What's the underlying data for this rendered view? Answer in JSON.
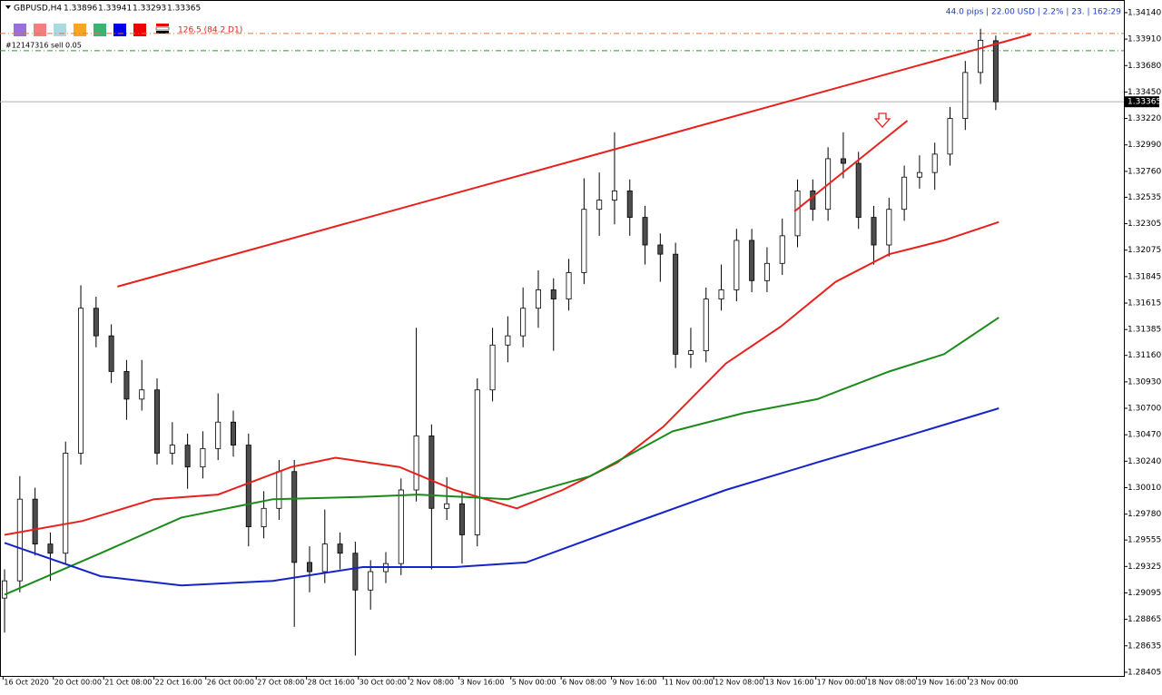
{
  "header": {
    "symbol": "GBPUSD,H4",
    "info": "44.0 pips | 22.00 USD | 2.2% | 23. | 162:29",
    "order": "#12147316 sell 0.05",
    "level_label": "126.5 (84.2 D1)",
    "swatches": [
      "#9b6fd8",
      "#f08080",
      "#aadbe0",
      "#f5a623",
      "#3cb371",
      "#0000ee",
      "#ee0000"
    ]
  },
  "chart_data": {
    "type": "candlestick",
    "open": [
      1.2905,
      1.292,
      1.2991,
      1.2952,
      1.2944,
      1.3031,
      1.3157,
      1.3133,
      1.3102,
      1.3078,
      1.3086,
      1.3031,
      1.3038,
      1.3019,
      1.3035,
      1.3058,
      1.3038,
      1.2967,
      1.2983,
      1.3015,
      1.2936,
      1.2928,
      1.2952,
      1.2944,
      1.2912,
      1.2928,
      1.2935,
      1.2999,
      1.3046,
      1.2983,
      1.2987,
      1.296,
      1.3086,
      1.3125,
      1.3133,
      1.3157,
      1.3173,
      1.3165,
      1.3188,
      1.3243,
      1.3251,
      1.3259,
      1.3236,
      1.3212,
      1.3204,
      1.3117,
      1.312,
      1.3165,
      1.3173,
      1.3216,
      1.3181,
      1.3196,
      1.322,
      1.3259,
      1.3243,
      1.3287,
      1.3283,
      1.3236,
      1.3212,
      1.3243,
      1.3271,
      1.3275,
      1.3291,
      1.3322,
      1.3362,
      1.33896
    ],
    "high": [
      1.293,
      1.3011,
      1.3001,
      1.2962,
      1.3041,
      1.3177,
      1.3167,
      1.3143,
      1.3112,
      1.3112,
      1.3096,
      1.3058,
      1.3048,
      1.305,
      1.3083,
      1.3068,
      1.3048,
      1.2998,
      1.3025,
      1.3025,
      1.295,
      1.2982,
      1.2962,
      1.2954,
      1.2938,
      1.2945,
      1.3009,
      1.314,
      1.3056,
      1.301,
      1.2997,
      1.3096,
      1.314,
      1.315,
      1.3175,
      1.319,
      1.3183,
      1.32,
      1.327,
      1.3275,
      1.331,
      1.3269,
      1.3246,
      1.3222,
      1.3214,
      1.314,
      1.3175,
      1.3195,
      1.3226,
      1.3226,
      1.321,
      1.3235,
      1.3269,
      1.3269,
      1.3297,
      1.331,
      1.3293,
      1.3246,
      1.3253,
      1.3281,
      1.329,
      1.3301,
      1.3332,
      1.3372,
      1.34,
      1.33941
    ],
    "low": [
      1.2875,
      1.291,
      1.2942,
      1.292,
      1.2934,
      1.3021,
      1.3123,
      1.3092,
      1.306,
      1.3068,
      1.3021,
      1.3021,
      1.3,
      1.3009,
      1.3025,
      1.3028,
      1.295,
      1.2957,
      1.2973,
      1.288,
      1.291,
      1.2918,
      1.293,
      1.2855,
      1.2895,
      1.2918,
      1.2925,
      1.2989,
      1.293,
      1.2973,
      1.2935,
      1.295,
      1.3076,
      1.311,
      1.3123,
      1.314,
      1.312,
      1.3155,
      1.3178,
      1.322,
      1.323,
      1.322,
      1.3195,
      1.318,
      1.3105,
      1.3105,
      1.311,
      1.3155,
      1.3163,
      1.3171,
      1.3171,
      1.3186,
      1.321,
      1.3233,
      1.3233,
      1.327,
      1.3226,
      1.3195,
      1.3202,
      1.3233,
      1.3261,
      1.326,
      1.3281,
      1.3312,
      1.3352,
      1.33293
    ],
    "close": [
      1.292,
      1.2991,
      1.2952,
      1.2944,
      1.3031,
      1.3157,
      1.3133,
      1.3102,
      1.3078,
      1.3086,
      1.3031,
      1.3038,
      1.3019,
      1.3035,
      1.3058,
      1.3038,
      1.2967,
      1.2983,
      1.3015,
      1.2936,
      1.2928,
      1.2952,
      1.2944,
      1.2912,
      1.2928,
      1.2935,
      1.2999,
      1.3046,
      1.2983,
      1.2987,
      1.296,
      1.3086,
      1.3125,
      1.3133,
      1.3157,
      1.3173,
      1.3165,
      1.3188,
      1.3243,
      1.3251,
      1.3259,
      1.3236,
      1.3212,
      1.3204,
      1.3117,
      1.312,
      1.3165,
      1.3173,
      1.3216,
      1.3181,
      1.3196,
      1.322,
      1.3259,
      1.3243,
      1.3287,
      1.3283,
      1.3236,
      1.3212,
      1.3243,
      1.3271,
      1.3275,
      1.3291,
      1.3322,
      1.3362,
      1.339,
      1.33365
    ],
    "up_color": "#ffffff",
    "down_color": "#4d4d4d",
    "xlim": [
      -0.3,
      73.4
    ],
    "xticks": [
      {
        "value": -0.1,
        "label": "16 Oct 2020"
      },
      {
        "value": 3.2,
        "label": "20 Oct 00:00"
      },
      {
        "value": 6.5,
        "label": "21 Oct 08:00"
      },
      {
        "value": 9.8,
        "label": "22 Oct 16:00"
      },
      {
        "value": 13.2,
        "label": "26 Oct 00:00"
      },
      {
        "value": 16.5,
        "label": "27 Oct 08:00"
      },
      {
        "value": 19.8,
        "label": "28 Oct 16:00"
      },
      {
        "value": 23.2,
        "label": "30 Oct 00:00"
      },
      {
        "value": 26.5,
        "label": "2 Nov 08:00"
      },
      {
        "value": 29.8,
        "label": "3 Nov 16:00"
      },
      {
        "value": 33.2,
        "label": "5 Nov 00:00"
      },
      {
        "value": 36.5,
        "label": "6 Nov 08:00"
      },
      {
        "value": 39.8,
        "label": "9 Nov 16:00"
      },
      {
        "value": 43.2,
        "label": "11 Nov 00:00"
      },
      {
        "value": 46.5,
        "label": "12 Nov 08:00"
      },
      {
        "value": 49.8,
        "label": "13 Nov 16:00"
      },
      {
        "value": 53.2,
        "label": "17 Nov 00:00"
      },
      {
        "value": 56.5,
        "label": "18 Nov 08:00"
      },
      {
        "value": 59.8,
        "label": "19 Nov 16:00"
      },
      {
        "value": 63.2,
        "label": "23 Nov 00:00"
      }
    ],
    "ylim": [
      1.28373,
      1.3425
    ],
    "yticks": [
      {
        "value": 1.3414,
        "label": "1.34140"
      },
      {
        "value": 1.3391,
        "label": "1.33910"
      },
      {
        "value": 1.3368,
        "label": "1.33680"
      },
      {
        "value": 1.3345,
        "label": "1.33450"
      },
      {
        "value": 1.3322,
        "label": "1.33220"
      },
      {
        "value": 1.3299,
        "label": "1.32990"
      },
      {
        "value": 1.3276,
        "label": "1.32760"
      },
      1.32535,
      1.32305,
      1.32075,
      1.31845,
      1.31615,
      1.31385,
      {
        "value": 1.3116,
        "label": "1.31160"
      },
      {
        "value": 1.3093,
        "label": "1.30930"
      },
      {
        "value": 1.307,
        "label": "1.30700"
      },
      {
        "value": 1.3047,
        "label": "1.30470"
      },
      {
        "value": 1.3024,
        "label": "1.30240"
      },
      {
        "value": 1.3001,
        "label": "1.30010"
      },
      {
        "value": 1.2978,
        "label": "1.29780"
      },
      1.29555,
      1.29325,
      1.29095,
      1.28865,
      1.28635,
      1.28405
    ],
    "lines": [
      {
        "color": "#e8201c",
        "x": [
          0,
          5.1,
          9.8,
          14,
          18.8,
          21.7,
          25.9,
          29.5,
          33.6,
          36.6,
          40.2,
          43.2,
          47.3,
          50.9,
          54.5,
          58,
          61.6,
          65.2
        ],
        "values": [
          1.296,
          1.2972,
          1.2991,
          1.2995,
          1.3019,
          1.3027,
          1.3019,
          1.2999,
          1.2983,
          1.2999,
          1.3023,
          1.3054,
          1.3109,
          1.3141,
          1.318,
          1.3204,
          1.3216,
          1.3232
        ]
      },
      {
        "color": "#1a8a1a",
        "x": [
          0,
          6.3,
          11.6,
          17.6,
          23.5,
          27.1,
          33,
          38.4,
          43.8,
          48.5,
          53.3,
          58,
          61.6,
          65.2
        ],
        "values": [
          1.2908,
          1.2944,
          1.2975,
          1.2991,
          1.2993,
          1.2995,
          1.2991,
          1.3011,
          1.305,
          1.3066,
          1.3078,
          1.3102,
          1.3117,
          1.3149
        ]
      },
      {
        "color": "#1424c8",
        "x": [
          0,
          6.3,
          11.6,
          17.6,
          23.5,
          29.5,
          34.2,
          41.4,
          47.3,
          53.3,
          59.2,
          65.2
        ],
        "values": [
          1.2953,
          1.2924,
          1.2916,
          1.292,
          1.2932,
          1.2932,
          1.2936,
          1.2971,
          1.2999,
          1.3023,
          1.3046,
          1.307
        ]
      }
    ],
    "trendlines": [
      {
        "color": "#e8201c",
        "x": [
          7.4,
          67.3
        ],
        "values": [
          1.31758,
          1.33951
        ]
      },
      {
        "color": "#e8201c",
        "x": [
          51.8,
          59.2
        ],
        "values": [
          1.32412,
          1.33201
        ]
      }
    ],
    "levels": [
      {
        "value": 1.33959,
        "color": "#e8743c"
      },
      {
        "value": 1.33809,
        "color": "#2a9a2a"
      }
    ],
    "price_line_color": "#b0b0b0"
  }
}
